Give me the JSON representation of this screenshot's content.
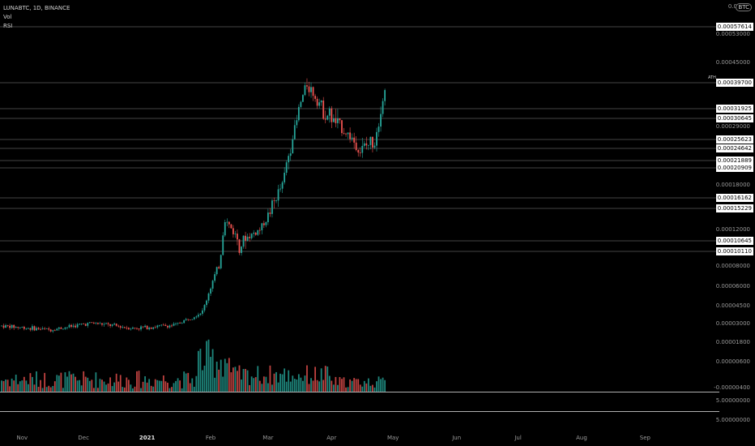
{
  "header": {
    "symbol_line": "LUNABTC, 1D, BINANCE",
    "indicator_vol": "Vol",
    "indicator_rsi": "RSI",
    "currency_button": "BTC"
  },
  "top_partial_label": "0.0",
  "ath_tag": "ATH",
  "colors": {
    "bull": "#26a69a",
    "bear": "#ef5350",
    "hline": "#5a5a5a",
    "background": "#000000"
  },
  "price_axis_ticks": [
    {
      "value": 0.00053,
      "label": "0.00053000"
    },
    {
      "value": 0.00045,
      "label": "0.00045000"
    },
    {
      "value": 0.00029,
      "label": "0.00029000"
    },
    {
      "value": 0.00018,
      "label": "0.00018000"
    },
    {
      "value": 0.00012,
      "label": "0.00012000"
    },
    {
      "value": 8e-05,
      "label": "0.00008000"
    },
    {
      "value": 6e-05,
      "label": "0.00006000"
    },
    {
      "value": 4.5e-05,
      "label": "0.00004500"
    },
    {
      "value": 3e-05,
      "label": "0.00003000"
    },
    {
      "value": 1.8e-05,
      "label": "0.00001800"
    },
    {
      "value": 6e-06,
      "label": "0.00000600"
    },
    {
      "value": -4e-06,
      "label": "-0.00000400"
    }
  ],
  "horizontal_levels": [
    {
      "value": 0.00057614,
      "label": "0.00057614"
    },
    {
      "value": 0.000397,
      "label": "0.00039700"
    },
    {
      "value": 0.00031925,
      "label": "0.00031925"
    },
    {
      "value": 0.00030645,
      "label": "0.00030645"
    },
    {
      "value": 0.00025623,
      "label": "0.00025623"
    },
    {
      "value": 0.00024642,
      "label": "0.00024642"
    },
    {
      "value": 0.00021889,
      "label": "0.00021889"
    },
    {
      "value": 0.00020909,
      "label": "0.00020909"
    },
    {
      "value": 0.00016162,
      "label": "0.00016162"
    },
    {
      "value": 0.00015229,
      "label": "0.00015229"
    },
    {
      "value": 0.00010645,
      "label": "0.00010645"
    },
    {
      "value": 0.0001011,
      "label": "0.00010110"
    }
  ],
  "subpane_labels": [
    "5.00000000",
    "5.00000000"
  ],
  "time_axis": [
    {
      "label": "Nov",
      "bold": false
    },
    {
      "label": "Dec",
      "bold": false
    },
    {
      "label": "2021",
      "bold": true
    },
    {
      "label": "Feb",
      "bold": false
    },
    {
      "label": "Mar",
      "bold": false
    },
    {
      "label": "Apr",
      "bold": false
    },
    {
      "label": "May",
      "bold": false
    },
    {
      "label": "Jun",
      "bold": false
    },
    {
      "label": "Jul",
      "bold": false
    },
    {
      "label": "Aug",
      "bold": false
    },
    {
      "label": "Sep",
      "bold": false
    }
  ],
  "chart_data": {
    "type": "candlestick",
    "symbol": "LUNABTC",
    "interval": "1D",
    "exchange": "BINANCE",
    "x_range": [
      "2020-10-22",
      "2021-09-28"
    ],
    "price_series_approx": [
      {
        "date": "2020-10-22",
        "close": 2.85e-05
      },
      {
        "date": "2020-11-15",
        "close": 2.6e-05
      },
      {
        "date": "2020-12-05",
        "close": 3.05e-05
      },
      {
        "date": "2020-12-25",
        "close": 2.7e-05
      },
      {
        "date": "2021-01-15",
        "close": 2.9e-05
      },
      {
        "date": "2021-01-28",
        "close": 4e-05
      },
      {
        "date": "2021-02-05",
        "close": 8e-05
      },
      {
        "date": "2021-02-08",
        "close": 0.000135
      },
      {
        "date": "2021-02-15",
        "close": 0.000105
      },
      {
        "date": "2021-02-25",
        "close": 0.00012
      },
      {
        "date": "2021-03-08",
        "close": 0.00018
      },
      {
        "date": "2021-03-15",
        "close": 0.0003
      },
      {
        "date": "2021-03-20",
        "close": 0.000395
      },
      {
        "date": "2021-03-28",
        "close": 0.00032
      },
      {
        "date": "2021-04-05",
        "close": 0.00029
      },
      {
        "date": "2021-04-15",
        "close": 0.00024
      },
      {
        "date": "2021-04-22",
        "close": 0.00026
      },
      {
        "date": "2021-04-27",
        "close": 0.00037
      }
    ],
    "volume_profile": "low through Jan, spikes late Jan / early Feb, moderate after"
  }
}
